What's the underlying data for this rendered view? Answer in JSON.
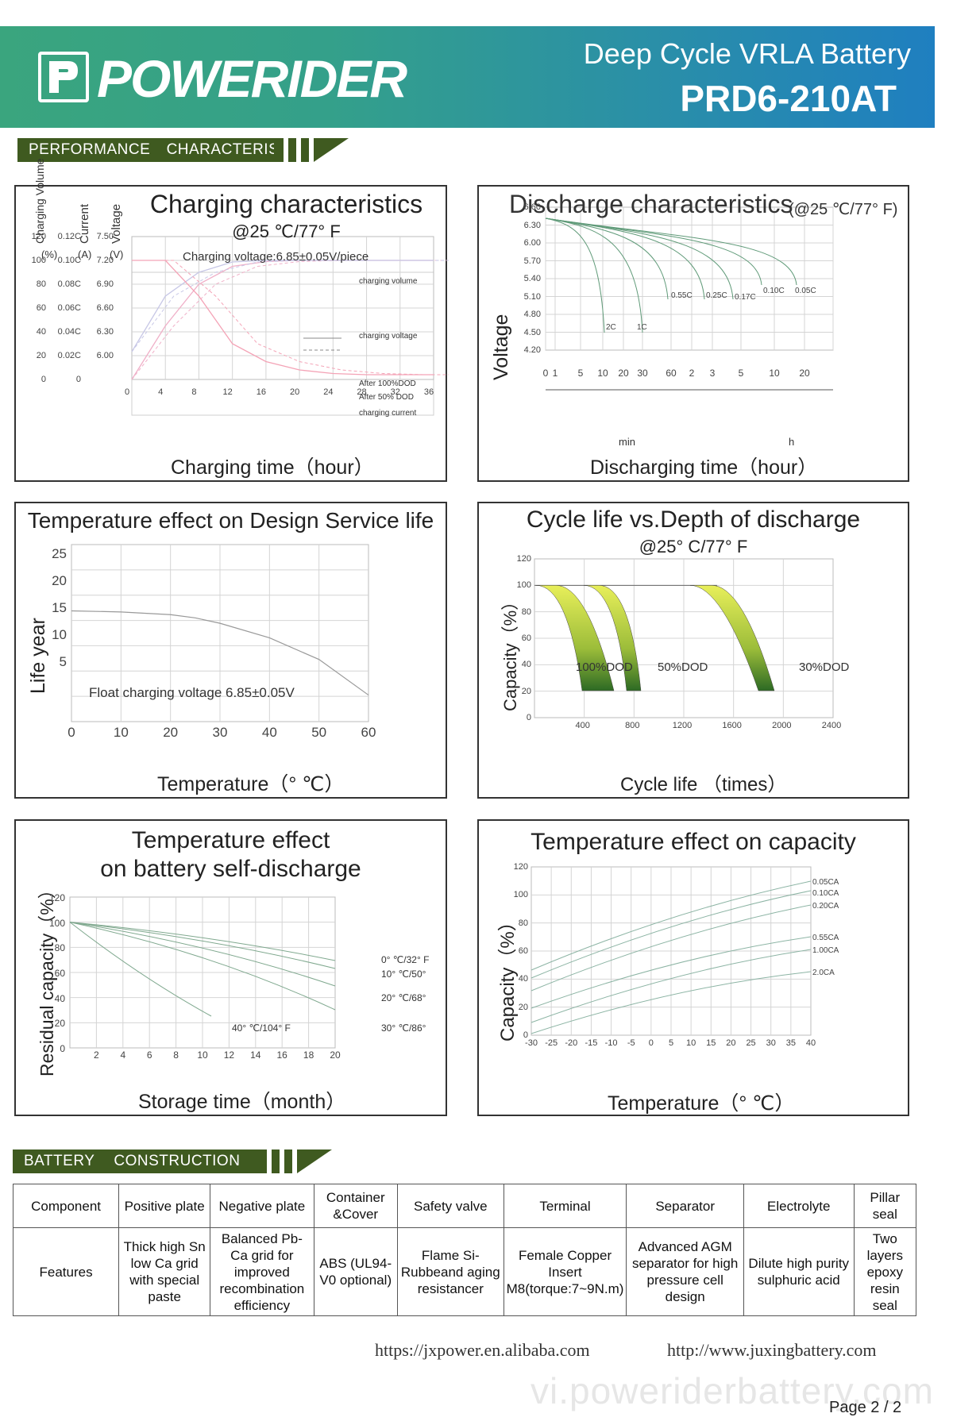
{
  "header": {
    "brand": "POWERIDER",
    "logo_side_text": "POWERIDER",
    "subtitle": "Deep Cycle VRLA Battery",
    "model": "PRD6-210AT",
    "colors": {
      "start": "#3aa57e",
      "end": "#1f7fc0"
    }
  },
  "sections": {
    "performance": {
      "a": "PERFORMANCE",
      "b": "CHARACTERISTIC"
    },
    "construction": {
      "a": "BATTERY",
      "b": "CONSTRUCTION"
    }
  },
  "chart_data": [
    {
      "id": "charging",
      "type": "line",
      "title": "Charging characteristics",
      "subtitle": "@25 ℃/77° F",
      "note": "Charging voltage:6.85±0.05V/piece",
      "y_axis_headers": [
        "Charging Volume",
        "Current",
        "Voltage"
      ],
      "y_axis_units": [
        "(%)",
        "(A)",
        "(V)"
      ],
      "y_ticks_volume": [
        "120",
        "100",
        "80",
        "60",
        "40",
        "20",
        "0"
      ],
      "y_ticks_current": [
        "0.12C",
        "0.10C",
        "0.08C",
        "0.06C",
        "0.04C",
        "0.02C",
        "0"
      ],
      "y_ticks_voltage": [
        "7.50",
        "7.20",
        "6.90",
        "6.60",
        "6.30",
        "6.00"
      ],
      "x_ticks": [
        "0",
        "4",
        "8",
        "12",
        "16",
        "20",
        "24",
        "28",
        "32",
        "36"
      ],
      "xlabel": "Charging time（hour）",
      "labels": {
        "volume": "charging volume",
        "voltage": "charging voltage",
        "after100": "After 100%DOD",
        "after50": "After  50% DOD",
        "current": "charging current"
      },
      "series": [
        {
          "name": "charging volume",
          "x": [
            0,
            4,
            8,
            12,
            16,
            20,
            24,
            28,
            32,
            36
          ],
          "y": [
            0,
            45,
            80,
            95,
            99,
            100,
            100,
            100,
            100,
            100
          ]
        },
        {
          "name": "charging voltage",
          "x": [
            0,
            4,
            8,
            12,
            16,
            20,
            24,
            28,
            32,
            36
          ],
          "y": [
            6.05,
            6.75,
            7.05,
            7.18,
            7.2,
            7.2,
            7.2,
            7.2,
            7.2,
            7.2
          ]
        },
        {
          "name": "charging current",
          "x": [
            0,
            4,
            8,
            12,
            16,
            20,
            24,
            28,
            32,
            36
          ],
          "y": [
            0.1,
            0.1,
            0.07,
            0.03,
            0.015,
            0.008,
            0.005,
            0.004,
            0.004,
            0.004
          ]
        }
      ]
    },
    {
      "id": "discharge",
      "type": "line",
      "title": "Discharge characteristics",
      "title_suffix": "(@25 ℃/77° F)",
      "ylabel": "Voltage",
      "y_ticks": [
        "6.60",
        "6.30",
        "6.00",
        "5.70",
        "5.40",
        "5.10",
        "4.80",
        "4.50",
        "4.20"
      ],
      "x_ticks": [
        "0",
        "1",
        "5",
        "10",
        "20",
        "30",
        "60",
        "2",
        "3",
        "5",
        "10",
        "20"
      ],
      "x_units": [
        "min",
        "h"
      ],
      "xlabel": "Discharging time（hour）",
      "series_labels": [
        "2C",
        "1C",
        "0.55C",
        "0.25C",
        "0.17C",
        "0.10C",
        "0.05C"
      ]
    },
    {
      "id": "service-life",
      "type": "line",
      "title": "Temperature effect on Design Service life",
      "ylabel": "Life year",
      "xlabel": "Temperature（° ℃）",
      "y_ticks": [
        "25",
        "20",
        "15",
        "10",
        "5"
      ],
      "x_ticks": [
        "0",
        "10",
        "20",
        "30",
        "40",
        "50",
        "60"
      ],
      "ylim": [
        0,
        25
      ],
      "xlim": [
        0,
        60
      ],
      "note": "Float charging voltage  6.85±0.05V",
      "series": [
        {
          "x": [
            0,
            10,
            20,
            25,
            30,
            40,
            50,
            60
          ],
          "y": [
            13.9,
            13.7,
            13.2,
            12.6,
            11.6,
            8.9,
            4.9,
            -1.7
          ]
        }
      ]
    },
    {
      "id": "cycle-life",
      "type": "area",
      "title": "Cycle life vs.Depth of discharge",
      "subtitle": "@25° C/77° F",
      "ylabel": "Capacity（%）",
      "xlabel": "Cycle life （times）",
      "y_ticks": [
        "120",
        "100",
        "80",
        "60",
        "40",
        "20",
        "0"
      ],
      "x_ticks": [
        "400",
        "800",
        "1200",
        "1600",
        "2000",
        "2400"
      ],
      "series_labels": [
        "100%DOD",
        "50%DOD",
        "30%DOD"
      ]
    },
    {
      "id": "self-discharge",
      "type": "line",
      "title_line1": "Temperature effect",
      "title_line2": "on battery self-discharge",
      "ylabel": "Residual capacity（%）",
      "xlabel": "Storage time（month）",
      "y_ticks": [
        "120",
        "100",
        "80",
        "60",
        "40",
        "20",
        "0"
      ],
      "x_ticks": [
        "2",
        "4",
        "6",
        "8",
        "10",
        "12",
        "14",
        "16",
        "18",
        "20"
      ],
      "series_labels": [
        "0° ℃/32° F",
        "10° ℃/50°",
        "20° ℃/68°",
        "30° ℃/86°",
        "40° ℃/104° F"
      ]
    },
    {
      "id": "temp-capacity",
      "type": "line",
      "title": "Temperature effect on capacity",
      "ylabel": "Capacity（%）",
      "xlabel": "Temperature（° ℃）",
      "y_ticks": [
        "120",
        "100",
        "80",
        "60",
        "40",
        "20",
        "0"
      ],
      "x_ticks": [
        "-30",
        "-25",
        "-20",
        "-15",
        "-10",
        "-5",
        "0",
        "5",
        "10",
        "15",
        "20",
        "25",
        "30",
        "35",
        "40"
      ],
      "series_labels": [
        "0.05CA",
        "0.10CA",
        "0.20CA",
        "0.55CA",
        "1.00CA",
        "2.0CA"
      ]
    }
  ],
  "table": {
    "header": [
      "Component",
      "Positive plate",
      "Negative plate",
      "Container &Cover",
      "Safety valve",
      "Terminal",
      "Separator",
      "Electrolyte",
      "Pillar seal"
    ],
    "features_label": "Features",
    "features": [
      "Thick high Sn low Ca grid with special paste",
      "Balanced Pb-Ca grid for improved recombination efficiency",
      "ABS (UL94-V0 optional)",
      "Flame Si-Rubbeand aging resistancer",
      "Female Copper Insert M8(torque:7~9N.m)",
      "Advanced AGM separator for high pressure cell design",
      "Dilute high purity sulphuric acid",
      "Two layers epoxy resin seal"
    ]
  },
  "footer": {
    "url1": "https://jxpower.en.alibaba.com",
    "url2": "http://www.juxingbattery.com",
    "watermark": "vi.poweriderbattery.com",
    "page": "Page   2 / 2"
  }
}
